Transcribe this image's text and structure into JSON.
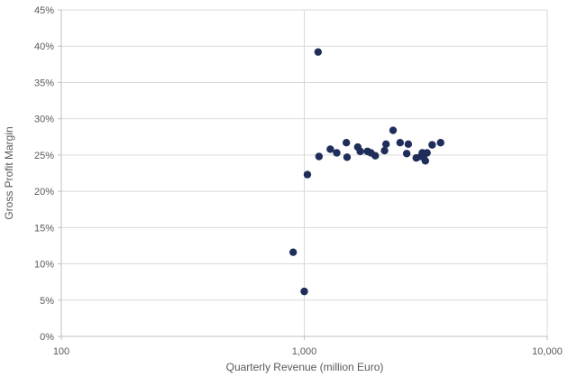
{
  "chart_data": {
    "type": "scatter",
    "title": "",
    "xlabel": "Quarterly Revenue (million Euro)",
    "ylabel": "Gross Profit Margin",
    "x_scale": "log",
    "xlim": [
      100,
      10000
    ],
    "ylim": [
      0,
      45
    ],
    "x_ticks": [
      100,
      1000,
      10000
    ],
    "x_tick_labels": [
      "100",
      "1,000",
      "10,000"
    ],
    "y_ticks": [
      0,
      5,
      10,
      15,
      20,
      25,
      30,
      35,
      40,
      45
    ],
    "y_tick_labels": [
      "0%",
      "5%",
      "10%",
      "15%",
      "20%",
      "25%",
      "30%",
      "35%",
      "40%",
      "45%"
    ],
    "grid": true,
    "legend": "none",
    "marker_color": "#1f2d5a",
    "gridline_color": "#d9d9d9",
    "axis_color": "#bfbfbf",
    "series": [
      {
        "x": [
          1140,
          900,
          1000,
          1030,
          1150,
          1280,
          1360,
          1490,
          1500,
          1660,
          1700,
          1820,
          1880,
          1960,
          2140,
          2170,
          2320,
          2480,
          2640,
          2680,
          2890,
          3020,
          3060,
          3130,
          3150,
          3200,
          3360,
          3640
        ],
        "y": [
          39.2,
          11.6,
          6.2,
          22.3,
          24.8,
          25.8,
          25.3,
          26.7,
          24.7,
          26.1,
          25.5,
          25.5,
          25.3,
          24.9,
          25.6,
          26.5,
          28.4,
          26.7,
          25.2,
          26.5,
          24.6,
          24.8,
          25.3,
          25.1,
          24.2,
          25.3,
          26.4,
          26.7
        ]
      }
    ]
  }
}
